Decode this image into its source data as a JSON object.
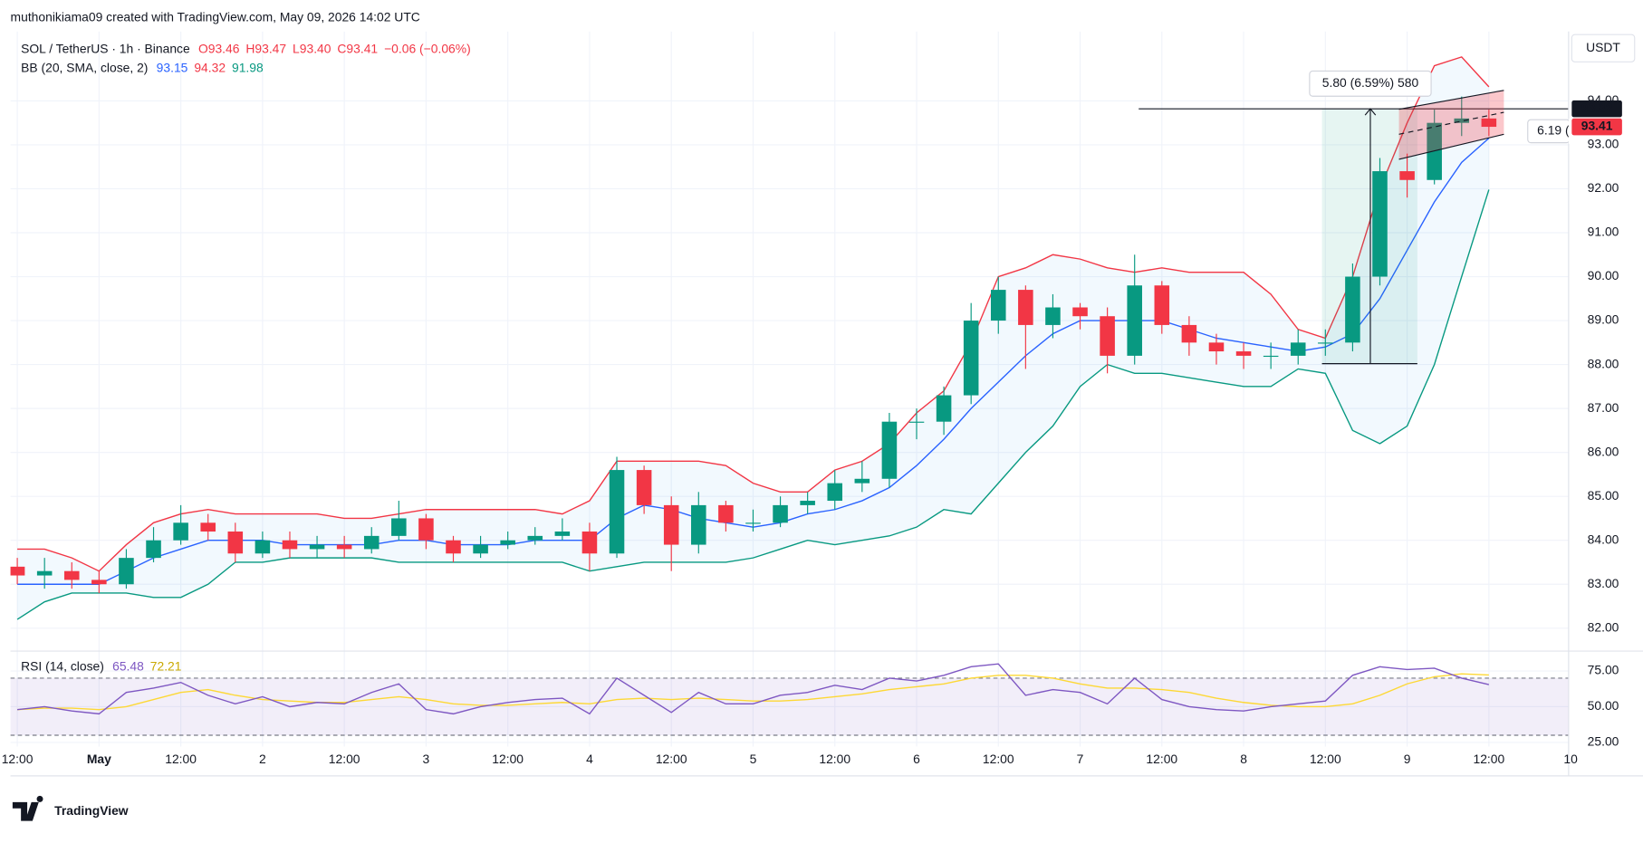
{
  "header": {
    "attribution": "muthonikiama09 created with TradingView.com, May 09, 2026 14:02 UTC",
    "symbol": "SOL / TetherUS · 1h · Binance",
    "ohlc": [
      "O93.46",
      "H93.47",
      "L93.40",
      "C93.41"
    ],
    "change": "−0.06 (−0.06%)",
    "bb_label": "BB (20, SMA, close, 2)",
    "rsi_label": "RSI (14, close)",
    "currency": "USDT",
    "brand": "TradingView"
  },
  "chart_data": {
    "type": "candlestick",
    "x": [
      -12,
      -8,
      -4,
      0,
      4,
      8,
      12,
      16,
      20,
      24,
      28,
      32,
      36,
      40,
      44,
      48,
      52,
      56,
      60,
      64,
      68,
      72,
      76,
      80,
      84,
      88,
      92,
      96,
      100,
      104,
      108,
      112,
      116,
      120,
      124,
      128,
      132,
      136,
      140,
      144,
      148,
      152,
      156,
      160,
      164,
      168,
      172,
      176,
      180,
      184,
      188,
      192,
      196,
      200,
      204
    ],
    "open": [
      83.4,
      83.2,
      83.3,
      83.1,
      83.0,
      83.6,
      84.0,
      84.4,
      84.2,
      83.7,
      84.0,
      83.8,
      83.9,
      83.8,
      84.1,
      84.5,
      84.0,
      83.7,
      83.9,
      84.0,
      84.1,
      84.2,
      83.7,
      85.6,
      84.8,
      83.9,
      84.8,
      84.4,
      84.4,
      84.8,
      84.9,
      85.3,
      85.4,
      86.7,
      86.7,
      87.3,
      89.0,
      89.7,
      88.9,
      89.3,
      89.1,
      88.2,
      89.8,
      88.9,
      88.5,
      88.3,
      88.2,
      88.2,
      88.5,
      88.5,
      90.0,
      92.4,
      92.2,
      93.5,
      93.6
    ],
    "high": [
      83.6,
      83.6,
      83.5,
      83.3,
      83.8,
      84.3,
      84.8,
      84.6,
      84.4,
      84.2,
      84.2,
      84.1,
      84.1,
      84.3,
      84.9,
      84.6,
      84.1,
      84.1,
      84.2,
      84.3,
      84.5,
      84.4,
      85.9,
      85.7,
      85.0,
      85.1,
      84.9,
      84.7,
      85.0,
      85.1,
      85.6,
      85.8,
      86.9,
      87.0,
      87.5,
      89.4,
      90.0,
      89.8,
      89.6,
      89.4,
      89.3,
      90.5,
      89.9,
      89.1,
      88.7,
      88.5,
      88.5,
      88.8,
      88.8,
      90.3,
      92.7,
      92.8,
      93.8,
      94.1,
      93.8
    ],
    "low": [
      83.0,
      82.9,
      82.9,
      82.8,
      82.9,
      83.5,
      83.9,
      84.0,
      83.5,
      83.6,
      83.6,
      83.6,
      83.6,
      83.7,
      84.0,
      83.8,
      83.5,
      83.6,
      83.8,
      83.9,
      84.0,
      83.3,
      83.6,
      84.6,
      83.3,
      83.7,
      84.2,
      84.2,
      84.3,
      84.6,
      84.7,
      85.1,
      85.2,
      86.3,
      86.4,
      87.1,
      88.7,
      87.9,
      88.6,
      88.8,
      87.8,
      88.0,
      88.7,
      88.2,
      88.0,
      87.9,
      87.9,
      88.0,
      88.2,
      88.3,
      89.8,
      91.8,
      92.1,
      93.2,
      93.2
    ],
    "close": [
      83.2,
      83.3,
      83.1,
      83.0,
      83.6,
      84.0,
      84.4,
      84.2,
      83.7,
      84.0,
      83.8,
      83.9,
      83.8,
      84.1,
      84.5,
      84.0,
      83.7,
      83.9,
      84.0,
      84.1,
      84.2,
      83.7,
      85.6,
      84.8,
      83.9,
      84.8,
      84.4,
      84.4,
      84.8,
      84.9,
      85.3,
      85.4,
      86.7,
      86.7,
      87.3,
      89.0,
      89.7,
      88.9,
      89.3,
      89.1,
      88.2,
      89.8,
      88.9,
      88.5,
      88.3,
      88.2,
      88.2,
      88.5,
      88.5,
      90.0,
      92.4,
      92.2,
      93.5,
      93.6,
      93.41
    ],
    "up_color": "#089981",
    "down_color": "#f23645",
    "xlim": [
      -13,
      215.7
    ],
    "xticks": [
      {
        "value": -12,
        "label": "12:00"
      },
      {
        "value": 0,
        "label": "May"
      },
      {
        "value": 12,
        "label": "12:00"
      },
      {
        "value": 24,
        "label": "2"
      },
      {
        "value": 36,
        "label": "12:00"
      },
      {
        "value": 48,
        "label": "3"
      },
      {
        "value": 60,
        "label": "12:00"
      },
      {
        "value": 72,
        "label": "4"
      },
      {
        "value": 84,
        "label": "12:00"
      },
      {
        "value": 96,
        "label": "5"
      },
      {
        "value": 108,
        "label": "12:00"
      },
      {
        "value": 120,
        "label": "6"
      },
      {
        "value": 132,
        "label": "12:00"
      },
      {
        "value": 144,
        "label": "7"
      },
      {
        "value": 156,
        "label": "12:00"
      },
      {
        "value": 168,
        "label": "8"
      },
      {
        "value": 180,
        "label": "12:00"
      },
      {
        "value": 192,
        "label": "9"
      },
      {
        "value": 204,
        "label": "12:00"
      },
      {
        "value": 216,
        "label": "10"
      }
    ],
    "ylim": [
      81.55,
      95.58
    ],
    "yticks": [
      {
        "value": 82,
        "label": "82.00"
      },
      {
        "value": 83,
        "label": "83.00"
      },
      {
        "value": 84,
        "label": "84.00"
      },
      {
        "value": 85,
        "label": "85.00"
      },
      {
        "value": 86,
        "label": "86.00"
      },
      {
        "value": 87,
        "label": "87.00"
      },
      {
        "value": 88,
        "label": "88.00"
      },
      {
        "value": 89,
        "label": "89.00"
      },
      {
        "value": 90,
        "label": "90.00"
      },
      {
        "value": 91,
        "label": "91.00"
      },
      {
        "value": 92,
        "label": "92.00"
      },
      {
        "value": 93,
        "label": "93.00"
      },
      {
        "value": 94,
        "label": "94.00"
      }
    ],
    "grid": true,
    "bb": {
      "upper": {
        "color": "#f23645",
        "values": [
          83.8,
          83.8,
          83.6,
          83.3,
          83.9,
          84.4,
          84.6,
          84.7,
          84.6,
          84.6,
          84.6,
          84.6,
          84.5,
          84.5,
          84.6,
          84.7,
          84.7,
          84.7,
          84.7,
          84.7,
          84.6,
          84.9,
          85.8,
          85.8,
          85.8,
          85.8,
          85.7,
          85.3,
          85.1,
          85.1,
          85.6,
          85.8,
          86.2,
          86.9,
          87.4,
          88.5,
          90.0,
          90.2,
          90.5,
          90.4,
          90.2,
          90.1,
          90.2,
          90.1,
          90.1,
          90.1,
          89.6,
          88.8,
          88.6,
          90.0,
          92.0,
          93.5,
          94.8,
          95.0,
          94.32
        ]
      },
      "middle": {
        "color": "#2962ff",
        "values": [
          83.0,
          83.0,
          83.0,
          83.0,
          83.3,
          83.6,
          83.8,
          84.0,
          84.0,
          84.0,
          83.9,
          83.9,
          83.9,
          83.9,
          84.0,
          84.0,
          83.9,
          83.9,
          83.9,
          84.0,
          84.0,
          84.0,
          84.5,
          84.8,
          84.7,
          84.5,
          84.4,
          84.3,
          84.4,
          84.6,
          84.7,
          84.9,
          85.2,
          85.7,
          86.3,
          87.0,
          87.6,
          88.2,
          88.7,
          89.0,
          89.0,
          89.0,
          89.0,
          88.8,
          88.6,
          88.5,
          88.4,
          88.3,
          88.4,
          88.7,
          89.5,
          90.6,
          91.7,
          92.6,
          93.15
        ]
      },
      "lower": {
        "color": "#089981",
        "values": [
          82.2,
          82.6,
          82.8,
          82.8,
          82.8,
          82.7,
          82.7,
          83.0,
          83.5,
          83.5,
          83.6,
          83.6,
          83.6,
          83.6,
          83.5,
          83.5,
          83.5,
          83.5,
          83.5,
          83.5,
          83.5,
          83.3,
          83.4,
          83.5,
          83.5,
          83.5,
          83.5,
          83.6,
          83.8,
          84.0,
          83.9,
          84.0,
          84.1,
          84.3,
          84.7,
          84.6,
          85.3,
          86.0,
          86.6,
          87.5,
          88.0,
          87.8,
          87.8,
          87.7,
          87.6,
          87.5,
          87.5,
          87.9,
          87.8,
          86.5,
          86.2,
          86.6,
          88.0,
          90.0,
          91.98
        ]
      }
    },
    "rsi": {
      "ylim": [
        22.1,
        86
      ],
      "yticks": [
        {
          "value": 25,
          "label": "25.00"
        },
        {
          "value": 50,
          "label": "50.00"
        },
        {
          "value": 75,
          "label": "75.00"
        }
      ],
      "band": [
        30,
        70
      ],
      "rsi": {
        "color": "#7e57c2",
        "values": [
          48,
          50,
          47,
          45,
          60,
          63,
          67,
          58,
          52,
          57,
          50,
          53,
          52,
          60,
          66,
          48,
          45,
          50,
          53,
          55,
          56,
          45,
          70,
          58,
          46,
          60,
          52,
          52,
          58,
          60,
          65,
          62,
          70,
          68,
          72,
          78,
          80,
          58,
          62,
          60,
          52,
          70,
          55,
          50,
          48,
          47,
          50,
          52,
          54,
          72,
          78,
          76,
          77,
          70,
          65.48
        ]
      },
      "ma": {
        "color": "#fdd835",
        "values": [
          48,
          49,
          49,
          48,
          50,
          55,
          60,
          62,
          58,
          55,
          54,
          53,
          53,
          55,
          57,
          55,
          52,
          51,
          51,
          52,
          53,
          52,
          55,
          56,
          55,
          56,
          55,
          54,
          54,
          55,
          57,
          59,
          62,
          64,
          66,
          70,
          72,
          72,
          70,
          66,
          63,
          63,
          62,
          60,
          56,
          53,
          51,
          50,
          50,
          52,
          58,
          66,
          71,
          73,
          72.21
        ]
      }
    },
    "drawings": {
      "measure": {
        "x": 186.6,
        "x_range": [
          179.5,
          193.5
        ],
        "from": 88.02,
        "to": 93.82,
        "label": "5.80 (6.59%) 580"
      },
      "hline": {
        "value": 93.82,
        "x_start": 152.6
      },
      "channel": {
        "x": [
          190.8,
          206.2
        ],
        "upper": [
          93.81,
          94.24
        ],
        "lower": [
          92.67,
          93.24
        ]
      },
      "price_labels": [
        {
          "value": 93.82,
          "label": "93.82",
          "color": "#131722"
        },
        {
          "value": 93.41,
          "label": "93.41",
          "color": "#f23645"
        }
      ],
      "side_label": {
        "value": 93.31,
        "label": "6.19 ("
      }
    }
  }
}
